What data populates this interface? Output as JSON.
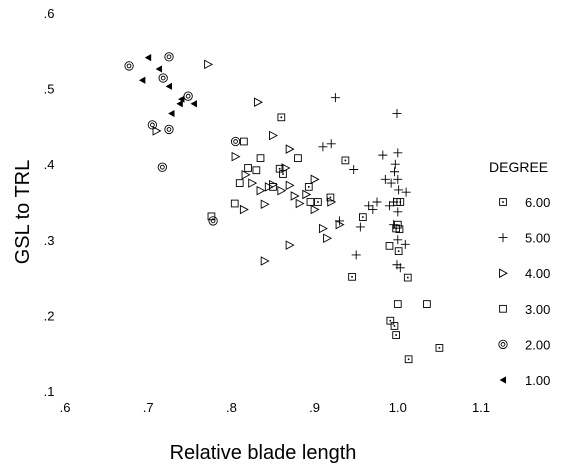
{
  "chart_data": {
    "type": "scatter",
    "xlabel": "Relative blade length",
    "ylabel": "GSL to TRL",
    "xlim": [
      0.6,
      1.1
    ],
    "ylim": [
      0.1,
      0.6
    ],
    "xticks": [
      ".6",
      ".7",
      ".8",
      ".9",
      "1.0",
      "1.1"
    ],
    "yticks": [
      ".6",
      ".5",
      ".4",
      ".3",
      ".2",
      ".1"
    ],
    "grid": false,
    "legend_title": "DEGREE",
    "legend_position": "right",
    "series": [
      {
        "name": "6.00",
        "marker": "square-dot",
        "points": [
          [
            0.86,
            0.462
          ],
          [
            0.858,
            0.394
          ],
          [
            0.862,
            0.387
          ],
          [
            0.893,
            0.37
          ],
          [
            0.904,
            0.35
          ],
          [
            0.919,
            0.356
          ],
          [
            0.937,
            0.405
          ],
          [
            0.999,
            0.35
          ],
          [
            1.003,
            0.35
          ],
          [
            0.998,
            0.315
          ],
          [
            1.001,
            0.285
          ],
          [
            1.012,
            0.25
          ],
          [
            0.991,
            0.193
          ],
          [
            0.996,
            0.186
          ],
          [
            0.998,
            0.174
          ],
          [
            1.013,
            0.142
          ],
          [
            1.05,
            0.157
          ],
          [
            0.945,
            0.251
          ],
          [
            0.958,
            0.33
          ]
        ]
      },
      {
        "name": "5.00",
        "marker": "plus",
        "points": [
          [
            0.925,
            0.488
          ],
          [
            0.91,
            0.423
          ],
          [
            0.92,
            0.427
          ],
          [
            0.947,
            0.393
          ],
          [
            0.982,
            0.412
          ],
          [
            0.999,
            0.467
          ],
          [
            1.0,
            0.415
          ],
          [
            0.997,
            0.4
          ],
          [
            0.996,
            0.39
          ],
          [
            1.0,
            0.38
          ],
          [
            0.992,
            0.375
          ],
          [
            1.001,
            0.366
          ],
          [
            1.01,
            0.363
          ],
          [
            0.985,
            0.38
          ],
          [
            0.975,
            0.35
          ],
          [
            0.97,
            0.34
          ],
          [
            0.99,
            0.345
          ],
          [
            1.0,
            0.337
          ],
          [
            0.995,
            0.32
          ],
          [
            1.0,
            0.3
          ],
          [
            1.009,
            0.294
          ],
          [
            0.999,
            0.267
          ],
          [
            1.003,
            0.263
          ],
          [
            0.955,
            0.317
          ],
          [
            0.95,
            0.28
          ],
          [
            0.93,
            0.325
          ],
          [
            0.965,
            0.345
          ],
          [
            0.995,
            0.35
          ]
        ]
      },
      {
        "name": "4.00",
        "marker": "triangle-right",
        "points": [
          [
            0.772,
            0.532
          ],
          [
            0.71,
            0.444
          ],
          [
            0.832,
            0.482
          ],
          [
            0.85,
            0.438
          ],
          [
            0.87,
            0.42
          ],
          [
            0.805,
            0.41
          ],
          [
            0.817,
            0.386
          ],
          [
            0.825,
            0.375
          ],
          [
            0.835,
            0.365
          ],
          [
            0.845,
            0.37
          ],
          [
            0.85,
            0.373
          ],
          [
            0.86,
            0.365
          ],
          [
            0.87,
            0.372
          ],
          [
            0.865,
            0.395
          ],
          [
            0.876,
            0.358
          ],
          [
            0.882,
            0.348
          ],
          [
            0.89,
            0.36
          ],
          [
            0.9,
            0.38
          ],
          [
            0.9,
            0.34
          ],
          [
            0.91,
            0.315
          ],
          [
            0.915,
            0.302
          ],
          [
            0.87,
            0.293
          ],
          [
            0.84,
            0.272
          ],
          [
            0.815,
            0.34
          ],
          [
            0.84,
            0.347
          ],
          [
            0.93,
            0.32
          ],
          [
            0.92,
            0.35
          ]
        ]
      },
      {
        "name": "3.00",
        "marker": "square",
        "points": [
          [
            0.776,
            0.331
          ],
          [
            0.804,
            0.348
          ],
          [
            0.81,
            0.375
          ],
          [
            0.815,
            0.43
          ],
          [
            0.82,
            0.395
          ],
          [
            0.83,
            0.392
          ],
          [
            0.835,
            0.408
          ],
          [
            0.85,
            0.37
          ],
          [
            0.88,
            0.408
          ],
          [
            0.895,
            0.35
          ],
          [
            1.0,
            0.32
          ],
          [
            1.002,
            0.314
          ],
          [
            1.0,
            0.215
          ],
          [
            1.035,
            0.215
          ],
          [
            0.99,
            0.292
          ]
        ]
      },
      {
        "name": "2.00",
        "marker": "ring",
        "points": [
          [
            0.677,
            0.53
          ],
          [
            0.725,
            0.542
          ],
          [
            0.718,
            0.514
          ],
          [
            0.748,
            0.49
          ],
          [
            0.705,
            0.452
          ],
          [
            0.725,
            0.446
          ],
          [
            0.717,
            0.396
          ],
          [
            0.805,
            0.43
          ],
          [
            0.778,
            0.325
          ]
        ]
      },
      {
        "name": "1.00",
        "marker": "triangle-left",
        "points": [
          [
            0.7,
            0.541
          ],
          [
            0.713,
            0.526
          ],
          [
            0.693,
            0.511
          ],
          [
            0.725,
            0.503
          ],
          [
            0.74,
            0.486
          ],
          [
            0.755,
            0.48
          ],
          [
            0.738,
            0.48
          ],
          [
            0.728,
            0.467
          ]
        ]
      }
    ]
  }
}
